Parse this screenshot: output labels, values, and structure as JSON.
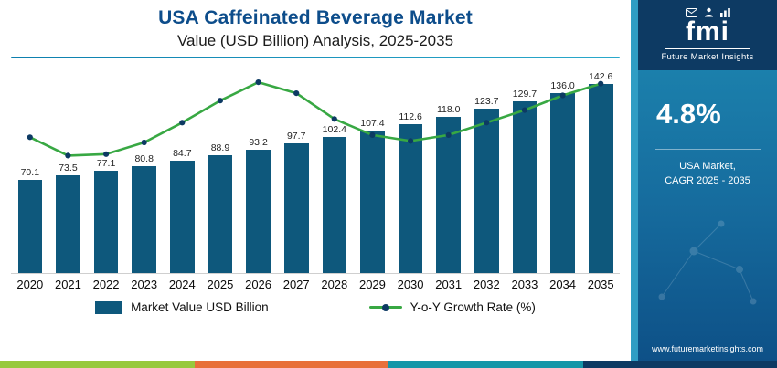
{
  "header": {
    "title": "USA Caffeinated Beverage Market",
    "subtitle": "Value (USD Billion) Analysis, 2025-2035"
  },
  "legend": {
    "bar_label": "Market Value USD Billion",
    "line_label": "Y-o-Y Growth Rate (%)"
  },
  "sidebar": {
    "logo_text": "fmi",
    "logo_caption": "Future Market Insights",
    "cagr_value": "4.8%",
    "cagr_caption_line1": "USA Market,",
    "cagr_caption_line2": "CAGR 2025 - 2035",
    "website": "www.futuremarketinsights.com"
  },
  "colors": {
    "bar": "#0e587c",
    "line": "#38a843",
    "marker": "#0d3a63",
    "title": "#0d4d8b"
  },
  "footer": {
    "stripe_colors": [
      "#97c93d",
      "#e8703a",
      "#1496a8",
      "#0d3a63"
    ]
  },
  "chart_data": {
    "type": "bar",
    "title": "USA Caffeinated Beverage Market Value (USD Billion) Analysis, 2025-2035",
    "categories": [
      "2020",
      "2021",
      "2022",
      "2023",
      "2024",
      "2025",
      "2026",
      "2027",
      "2028",
      "2029",
      "2030",
      "2031",
      "2032",
      "2033",
      "2034",
      "2035"
    ],
    "series": [
      {
        "name": "Market Value USD Billion",
        "type": "bar",
        "values": [
          70.1,
          73.5,
          77.1,
          80.8,
          84.7,
          88.9,
          93.2,
          97.7,
          102.4,
          107.4,
          112.6,
          118.0,
          123.7,
          129.7,
          136.0,
          142.6
        ]
      },
      {
        "name": "Y-o-Y Growth Rate (%)",
        "type": "line",
        "axis": "secondary",
        "values_estimated_from_curve": true,
        "values": [
          4.85,
          4.6,
          4.62,
          4.78,
          5.05,
          5.35,
          5.6,
          5.45,
          5.1,
          4.88,
          4.8,
          4.88,
          5.05,
          5.22,
          5.42,
          5.58
        ]
      }
    ],
    "ylim": [
      0,
      155
    ],
    "ylim_secondary": [
      3.0,
      5.8
    ],
    "bar_labels_shown": true,
    "grid": false,
    "legend_position": "bottom"
  }
}
